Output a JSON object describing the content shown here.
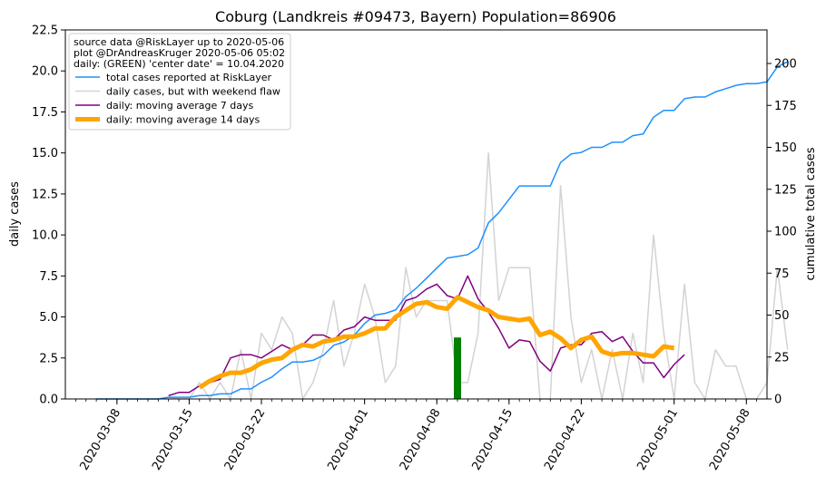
{
  "chart_data": {
    "type": "line",
    "title": "Coburg (Landkreis #09473, Bayern) Population=86906",
    "left_axis": {
      "label": "daily cases",
      "label_color": "#800080",
      "ylim": [
        0,
        22.5
      ],
      "ticks": [
        "0.0",
        "2.5",
        "5.0",
        "7.5",
        "10.0",
        "12.5",
        "15.0",
        "17.5",
        "20.0",
        "22.5"
      ]
    },
    "right_axis": {
      "label": "cumulative total cases",
      "label_color": "#1E90FF",
      "ylim": [
        0,
        220
      ],
      "ticks": [
        "0",
        "25",
        "50",
        "75",
        "100",
        "125",
        "150",
        "175",
        "200"
      ]
    },
    "x_axis": {
      "start_date": "2020-03-03",
      "end_date": "2020-05-10",
      "tick_labels": [
        "2020-03-08",
        "2020-03-15",
        "2020-03-22",
        "2020-04-01",
        "2020-04-08",
        "2020-04-15",
        "2020-04-22",
        "2020-05-01",
        "2020-05-08"
      ]
    },
    "legend": {
      "placement": "top-left",
      "info_lines": [
        "source data @RiskLayer up to 2020-05-06",
        "plot @DrAndreasKruger 2020-05-06 05:02",
        "daily: (GREEN) 'center date' = 10.04.2020"
      ],
      "entries": [
        {
          "label": "total cases reported at RiskLayer",
          "color": "#1E90FF",
          "width": 1.5
        },
        {
          "label": "daily cases, but with weekend flaw",
          "color": "#D3D3D3",
          "width": 1.5
        },
        {
          "label": "daily: moving average 7 days",
          "color": "#800080",
          "width": 1.5
        },
        {
          "label": "daily: moving average 14 days",
          "color": "#FFA500",
          "width": 5
        }
      ]
    },
    "center_date_bar": {
      "date": "2020-04-10",
      "value": 3.75,
      "color": "#008000"
    },
    "series": [
      {
        "name": "total cases reported at RiskLayer",
        "axis": "right",
        "color": "#1E90FF",
        "start_date": "2020-03-06",
        "values": [
          0,
          0,
          0,
          0,
          0,
          0,
          0,
          1,
          1,
          1,
          2,
          2,
          3,
          3,
          6,
          6,
          10,
          13,
          18,
          22,
          22,
          23,
          26,
          32,
          34,
          38,
          45,
          50,
          51,
          53,
          61,
          66,
          72,
          78,
          84,
          85,
          86,
          90,
          105,
          111,
          119,
          127,
          127,
          127,
          127,
          141,
          146,
          147,
          150,
          150,
          153,
          153,
          157,
          158,
          168,
          172,
          172,
          179,
          180,
          180,
          183,
          185,
          187,
          188,
          188,
          189,
          198,
          201
        ]
      },
      {
        "name": "daily cases, but with weekend flaw",
        "axis": "left",
        "color": "#D3D3D3",
        "start_date": "2020-03-06",
        "values": [
          0,
          0,
          0,
          0,
          0,
          0,
          0,
          0.1,
          0,
          0,
          1,
          0,
          1,
          0,
          3,
          0,
          4,
          3,
          5,
          4,
          0,
          1,
          3,
          6,
          2,
          4,
          7,
          5,
          1,
          2,
          8,
          5,
          6,
          6,
          6,
          1,
          1,
          4,
          15,
          6,
          8,
          8,
          8,
          0,
          0,
          13,
          5,
          1,
          3,
          0,
          3,
          0,
          4,
          1,
          10,
          4,
          0,
          7,
          1,
          0,
          3,
          2,
          2,
          0,
          0,
          1,
          8,
          3
        ]
      },
      {
        "name": "daily: moving average 7 days",
        "axis": "left",
        "color": "#800080",
        "start_date": "2020-03-13",
        "values": [
          0.2,
          0.4,
          0.4,
          0.8,
          1.0,
          1.2,
          2.5,
          2.7,
          2.7,
          2.5,
          2.9,
          3.3,
          3.0,
          3.3,
          3.9,
          3.9,
          3.6,
          4.2,
          4.4,
          5.0,
          4.8,
          4.8,
          4.8,
          6.0,
          6.2,
          6.7,
          7.0,
          6.3,
          6.1,
          7.5,
          6.1,
          5.3,
          4.3,
          3.1,
          3.6,
          3.5,
          2.3,
          1.7,
          3.1,
          3.3,
          3.3,
          4.0,
          4.1,
          3.5,
          3.8,
          2.9,
          2.2,
          2.2,
          1.3,
          2.1,
          2.7
        ]
      },
      {
        "name": "daily: moving average 14 days",
        "axis": "left",
        "color": "#FFA500",
        "start_date": "2020-03-16",
        "values": [
          0.7,
          1.1,
          1.4,
          1.6,
          1.6,
          1.8,
          2.2,
          2.4,
          2.5,
          3.0,
          3.3,
          3.2,
          3.5,
          3.6,
          3.8,
          3.8,
          4.0,
          4.3,
          4.3,
          5.0,
          5.4,
          5.8,
          5.9,
          5.6,
          5.5,
          6.2,
          5.9,
          5.6,
          5.4,
          5.0,
          4.9,
          4.8,
          4.9,
          3.9,
          4.1,
          3.7,
          3.1,
          3.6,
          3.8,
          2.9,
          2.7,
          2.8,
          2.8,
          2.7,
          2.6,
          3.2,
          3.1
        ]
      }
    ]
  }
}
